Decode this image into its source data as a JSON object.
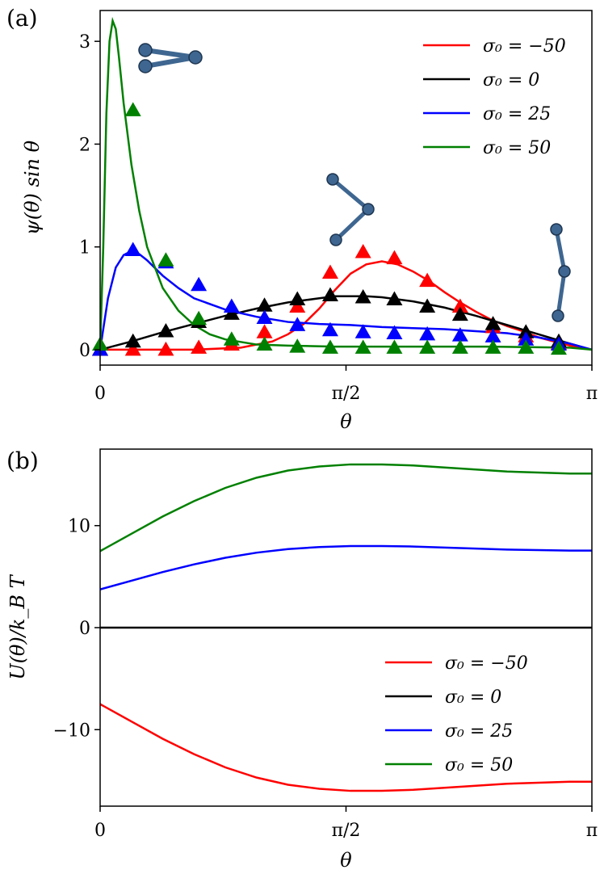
{
  "chart_data": [
    {
      "panel_label": "(a)",
      "type": "line",
      "xlabel": "θ",
      "ylabel": "ψ(θ) sin θ",
      "xlim": [
        0,
        3.14159
      ],
      "ylim": [
        -0.15,
        3.3
      ],
      "xticks": [
        {
          "value": 0,
          "label": "0"
        },
        {
          "value": 1.5708,
          "label": "π/2"
        },
        {
          "value": 3.14159,
          "label": "π"
        }
      ],
      "yticks": [
        {
          "value": 0,
          "label": "0"
        },
        {
          "value": 1,
          "label": "1"
        },
        {
          "value": 2,
          "label": "2"
        },
        {
          "value": 3,
          "label": "3"
        }
      ],
      "legend_position": "top-right",
      "series": [
        {
          "name": "σ₀ = −50",
          "color": "#ff0000",
          "line": [
            [
              0,
              0
            ],
            [
              0.3,
              0.0
            ],
            [
              0.6,
              0.0
            ],
            [
              0.9,
              0.02
            ],
            [
              1.1,
              0.08
            ],
            [
              1.2,
              0.15
            ],
            [
              1.3,
              0.25
            ],
            [
              1.4,
              0.4
            ],
            [
              1.5,
              0.58
            ],
            [
              1.6,
              0.74
            ],
            [
              1.7,
              0.83
            ],
            [
              1.8,
              0.86
            ],
            [
              1.9,
              0.83
            ],
            [
              2.0,
              0.76
            ],
            [
              2.1,
              0.67
            ],
            [
              2.2,
              0.56
            ],
            [
              2.3,
              0.46
            ],
            [
              2.4,
              0.37
            ],
            [
              2.5,
              0.29
            ],
            [
              2.6,
              0.23
            ],
            [
              2.7,
              0.18
            ],
            [
              2.8,
              0.12
            ],
            [
              2.9,
              0.08
            ],
            [
              3.0,
              0.04
            ],
            [
              3.14159,
              0.0
            ]
          ],
          "points": [
            [
              0.0,
              0.0
            ],
            [
              0.21,
              0.0
            ],
            [
              0.42,
              0.0
            ],
            [
              0.63,
              0.02
            ],
            [
              0.84,
              0.05
            ],
            [
              1.05,
              0.17
            ],
            [
              1.26,
              0.42
            ],
            [
              1.47,
              0.75
            ],
            [
              1.68,
              0.95
            ],
            [
              1.88,
              0.89
            ],
            [
              2.09,
              0.67
            ],
            [
              2.3,
              0.42
            ],
            [
              2.51,
              0.22
            ],
            [
              2.72,
              0.13
            ],
            [
              2.93,
              0.06
            ]
          ]
        },
        {
          "name": "σ₀ = 0",
          "color": "#000000",
          "line": [
            [
              0,
              0
            ],
            [
              0.2,
              0.08
            ],
            [
              0.4,
              0.17
            ],
            [
              0.6,
              0.25
            ],
            [
              0.8,
              0.33
            ],
            [
              1.0,
              0.4
            ],
            [
              1.2,
              0.46
            ],
            [
              1.4,
              0.5
            ],
            [
              1.5,
              0.52
            ],
            [
              1.6,
              0.52
            ],
            [
              1.7,
              0.52
            ],
            [
              1.8,
              0.51
            ],
            [
              2.0,
              0.47
            ],
            [
              2.2,
              0.41
            ],
            [
              2.4,
              0.33
            ],
            [
              2.6,
              0.24
            ],
            [
              2.8,
              0.15
            ],
            [
              3.0,
              0.06
            ],
            [
              3.14159,
              0.0
            ]
          ],
          "points": [
            [
              0.0,
              0.0
            ],
            [
              0.21,
              0.08
            ],
            [
              0.42,
              0.18
            ],
            [
              0.63,
              0.27
            ],
            [
              0.84,
              0.35
            ],
            [
              1.05,
              0.43
            ],
            [
              1.26,
              0.49
            ],
            [
              1.47,
              0.53
            ],
            [
              1.68,
              0.51
            ],
            [
              1.88,
              0.49
            ],
            [
              2.09,
              0.42
            ],
            [
              2.3,
              0.34
            ],
            [
              2.51,
              0.25
            ],
            [
              2.72,
              0.17
            ],
            [
              2.93,
              0.08
            ]
          ]
        },
        {
          "name": "σ₀ = 25",
          "color": "#0000ff",
          "line": [
            [
              0,
              0
            ],
            [
              0.05,
              0.5
            ],
            [
              0.1,
              0.8
            ],
            [
              0.15,
              0.92
            ],
            [
              0.2,
              0.96
            ],
            [
              0.25,
              0.93
            ],
            [
              0.3,
              0.87
            ],
            [
              0.4,
              0.72
            ],
            [
              0.5,
              0.6
            ],
            [
              0.6,
              0.5
            ],
            [
              0.8,
              0.39
            ],
            [
              1.0,
              0.32
            ],
            [
              1.2,
              0.27
            ],
            [
              1.4,
              0.25
            ],
            [
              1.6,
              0.24
            ],
            [
              1.8,
              0.22
            ],
            [
              2.0,
              0.21
            ],
            [
              2.2,
              0.2
            ],
            [
              2.4,
              0.18
            ],
            [
              2.6,
              0.16
            ],
            [
              2.8,
              0.12
            ],
            [
              3.0,
              0.06
            ],
            [
              3.14159,
              0.0
            ]
          ],
          "points": [
            [
              0.0,
              0.0
            ],
            [
              0.21,
              0.97
            ],
            [
              0.42,
              0.85
            ],
            [
              0.63,
              0.63
            ],
            [
              0.84,
              0.42
            ],
            [
              1.05,
              0.31
            ],
            [
              1.26,
              0.24
            ],
            [
              1.47,
              0.19
            ],
            [
              1.68,
              0.17
            ],
            [
              1.88,
              0.16
            ],
            [
              2.09,
              0.15
            ],
            [
              2.3,
              0.14
            ],
            [
              2.51,
              0.13
            ],
            [
              2.72,
              0.1
            ],
            [
              2.93,
              0.05
            ]
          ]
        },
        {
          "name": "σ₀ = 50",
          "color": "#008000",
          "line": [
            [
              0,
              0
            ],
            [
              0.02,
              1.0
            ],
            [
              0.04,
              2.3
            ],
            [
              0.06,
              3.0
            ],
            [
              0.08,
              3.2
            ],
            [
              0.1,
              3.12
            ],
            [
              0.12,
              2.85
            ],
            [
              0.15,
              2.4
            ],
            [
              0.2,
              1.8
            ],
            [
              0.25,
              1.35
            ],
            [
              0.3,
              1.0
            ],
            [
              0.4,
              0.6
            ],
            [
              0.5,
              0.38
            ],
            [
              0.6,
              0.24
            ],
            [
              0.7,
              0.15
            ],
            [
              0.8,
              0.1
            ],
            [
              1.0,
              0.05
            ],
            [
              1.2,
              0.04
            ],
            [
              1.5,
              0.03
            ],
            [
              2.0,
              0.03
            ],
            [
              2.5,
              0.03
            ],
            [
              3.0,
              0.02
            ],
            [
              3.14159,
              0.0
            ]
          ],
          "points": [
            [
              0.0,
              0.05
            ],
            [
              0.21,
              2.33
            ],
            [
              0.42,
              0.87
            ],
            [
              0.63,
              0.3
            ],
            [
              0.84,
              0.1
            ],
            [
              1.05,
              0.05
            ],
            [
              1.26,
              0.03
            ],
            [
              1.47,
              0.02
            ],
            [
              1.68,
              0.02
            ],
            [
              1.88,
              0.02
            ],
            [
              2.09,
              0.02
            ],
            [
              2.3,
              0.02
            ],
            [
              2.51,
              0.02
            ],
            [
              2.72,
              0.02
            ],
            [
              2.93,
              0.01
            ]
          ]
        }
      ]
    },
    {
      "panel_label": "(b)",
      "type": "line",
      "xlabel": "θ",
      "ylabel": "U(θ)/k_B T",
      "xlim": [
        0,
        3.14159
      ],
      "ylim": [
        -17.5,
        17.5
      ],
      "xticks": [
        {
          "value": 0,
          "label": "0"
        },
        {
          "value": 1.5708,
          "label": "π/2"
        },
        {
          "value": 3.14159,
          "label": "π"
        }
      ],
      "yticks": [
        {
          "value": -10,
          "label": "−10"
        },
        {
          "value": 0,
          "label": "0"
        },
        {
          "value": 10,
          "label": "10"
        }
      ],
      "legend_position": "bottom-right",
      "series": [
        {
          "name": "σ₀ = −50",
          "color": "#ff0000",
          "line": [
            [
              0,
              -7.5
            ],
            [
              0.2,
              -9.2
            ],
            [
              0.4,
              -10.9
            ],
            [
              0.6,
              -12.4
            ],
            [
              0.8,
              -13.7
            ],
            [
              1.0,
              -14.7
            ],
            [
              1.2,
              -15.4
            ],
            [
              1.4,
              -15.8
            ],
            [
              1.6,
              -16.0
            ],
            [
              1.8,
              -16.0
            ],
            [
              2.0,
              -15.9
            ],
            [
              2.2,
              -15.7
            ],
            [
              2.4,
              -15.5
            ],
            [
              2.6,
              -15.3
            ],
            [
              2.8,
              -15.2
            ],
            [
              3.0,
              -15.1
            ],
            [
              3.14159,
              -15.1
            ]
          ]
        },
        {
          "name": "σ₀ = 0",
          "color": "#000000",
          "line": [
            [
              0,
              0
            ],
            [
              3.14159,
              0
            ]
          ]
        },
        {
          "name": "σ₀ = 25",
          "color": "#0000ff",
          "line": [
            [
              0,
              3.75
            ],
            [
              0.2,
              4.6
            ],
            [
              0.4,
              5.45
            ],
            [
              0.6,
              6.2
            ],
            [
              0.8,
              6.85
            ],
            [
              1.0,
              7.35
            ],
            [
              1.2,
              7.7
            ],
            [
              1.4,
              7.9
            ],
            [
              1.6,
              8.0
            ],
            [
              1.8,
              8.0
            ],
            [
              2.0,
              7.95
            ],
            [
              2.2,
              7.85
            ],
            [
              2.4,
              7.75
            ],
            [
              2.6,
              7.65
            ],
            [
              2.8,
              7.6
            ],
            [
              3.0,
              7.55
            ],
            [
              3.14159,
              7.55
            ]
          ]
        },
        {
          "name": "σ₀ = 50",
          "color": "#008000",
          "line": [
            [
              0,
              7.5
            ],
            [
              0.2,
              9.2
            ],
            [
              0.4,
              10.9
            ],
            [
              0.6,
              12.4
            ],
            [
              0.8,
              13.7
            ],
            [
              1.0,
              14.7
            ],
            [
              1.2,
              15.4
            ],
            [
              1.4,
              15.8
            ],
            [
              1.6,
              16.0
            ],
            [
              1.8,
              16.0
            ],
            [
              2.0,
              15.9
            ],
            [
              2.2,
              15.7
            ],
            [
              2.4,
              15.5
            ],
            [
              2.6,
              15.3
            ],
            [
              2.8,
              15.2
            ],
            [
              3.0,
              15.1
            ],
            [
              3.14159,
              15.1
            ]
          ]
        }
      ]
    }
  ],
  "molecule_color": "#3e6690"
}
